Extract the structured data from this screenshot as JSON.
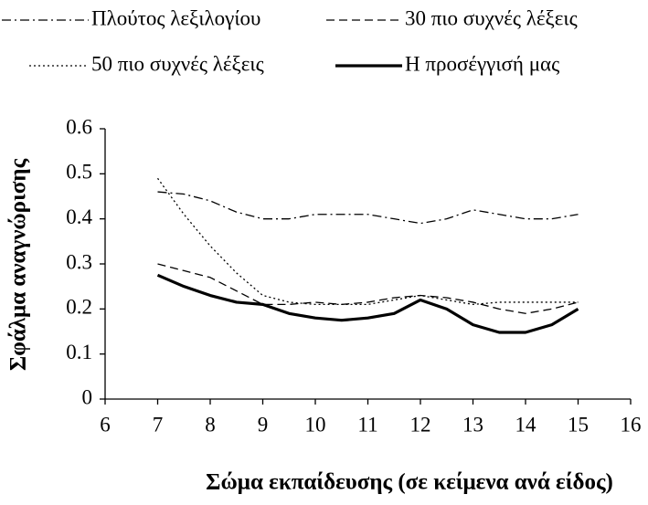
{
  "chart_data": {
    "type": "line",
    "x_label": "Σώμα εκπαίδευσης (σε κείμενα ανά είδος)",
    "y_label": "Σφάλμα αναγνώρισης",
    "x": [
      7,
      7.5,
      8,
      8.5,
      9,
      9.5,
      10,
      10.5,
      11,
      11.5,
      12,
      12.5,
      13,
      13.5,
      14,
      14.5,
      15
    ],
    "series": [
      {
        "name": "Πλούτος λεξιλογίου",
        "color": "#000000",
        "linestyle": "dashdot",
        "values": [
          0.46,
          0.455,
          0.44,
          0.415,
          0.4,
          0.4,
          0.41,
          0.41,
          0.41,
          0.4,
          0.39,
          0.4,
          0.42,
          0.41,
          0.4,
          0.4,
          0.41
        ]
      },
      {
        "name": "30 πιο συχνές λέξεις",
        "color": "#000000",
        "linestyle": "dashed",
        "values": [
          0.3,
          0.285,
          0.27,
          0.24,
          0.21,
          0.21,
          0.215,
          0.21,
          0.215,
          0.225,
          0.23,
          0.225,
          0.215,
          0.2,
          0.19,
          0.2,
          0.215
        ]
      },
      {
        "name": "50 πιο συχνές λέξεις",
        "color": "#000000",
        "linestyle": "dotted",
        "values": [
          0.49,
          0.41,
          0.34,
          0.28,
          0.23,
          0.215,
          0.21,
          0.21,
          0.21,
          0.22,
          0.23,
          0.22,
          0.21,
          0.215,
          0.215,
          0.215,
          0.215
        ]
      },
      {
        "name": "Η προσέγγισή μας",
        "color": "#000000",
        "linestyle": "solid",
        "values": [
          0.275,
          0.25,
          0.23,
          0.215,
          0.21,
          0.19,
          0.18,
          0.175,
          0.18,
          0.19,
          0.22,
          0.2,
          0.165,
          0.148,
          0.148,
          0.165,
          0.2
        ]
      }
    ],
    "xlim": [
      6,
      16
    ],
    "xticks": [
      6,
      7,
      8,
      9,
      10,
      11,
      12,
      13,
      14,
      15,
      16
    ],
    "ylim": [
      0,
      0.6
    ],
    "yticks": [
      0,
      0.1,
      0.2,
      0.3,
      0.4,
      0.5,
      0.6
    ],
    "grid": false,
    "legend": "top"
  }
}
